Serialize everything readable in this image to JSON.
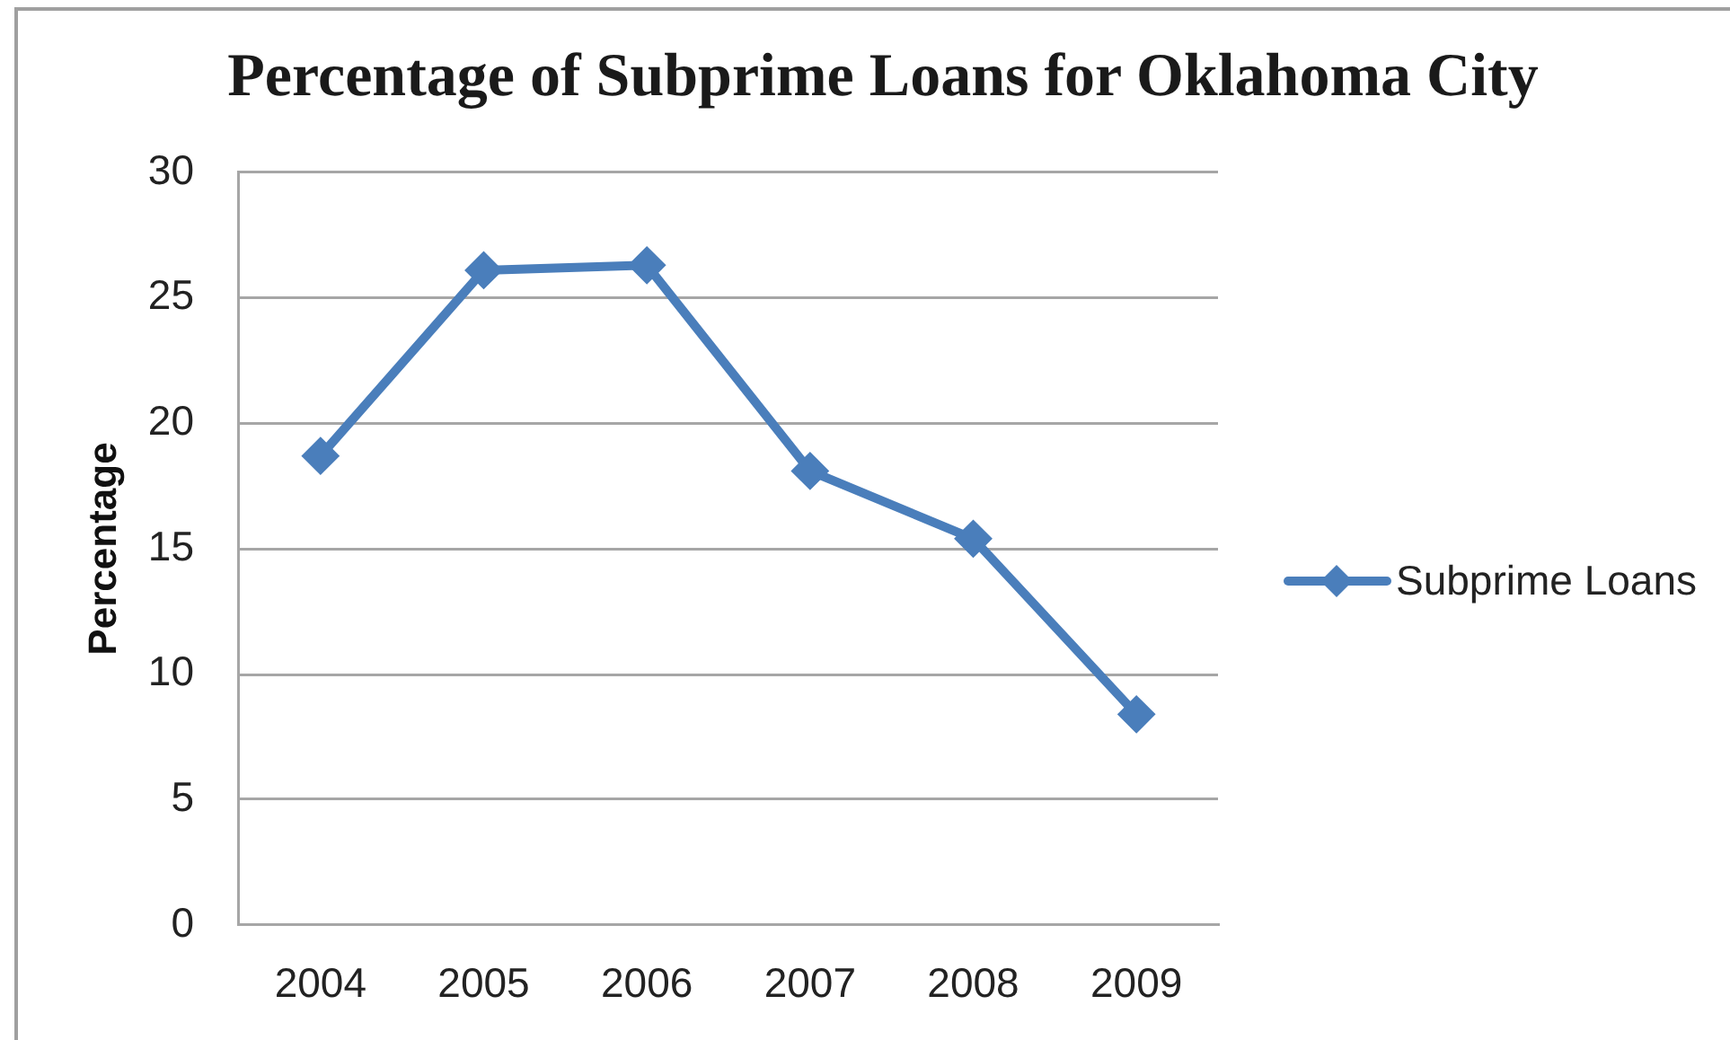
{
  "chart_data": {
    "type": "line",
    "title": "Percentage of Subprime Loans for Oklahoma City",
    "ylabel": "Percentage",
    "categories": [
      "2004",
      "2005",
      "2006",
      "2007",
      "2008",
      "2009"
    ],
    "series": [
      {
        "name": "Subprime Loans",
        "color": "#4a7ebb",
        "values": [
          18.7,
          26.1,
          26.3,
          18.1,
          15.4,
          8.4
        ]
      }
    ],
    "ylim": [
      0,
      30
    ],
    "yticks": [
      0,
      5,
      10,
      15,
      20,
      25,
      30
    ],
    "grid": "y",
    "legend": "right",
    "marker": "diamond",
    "line_style": "solid"
  }
}
